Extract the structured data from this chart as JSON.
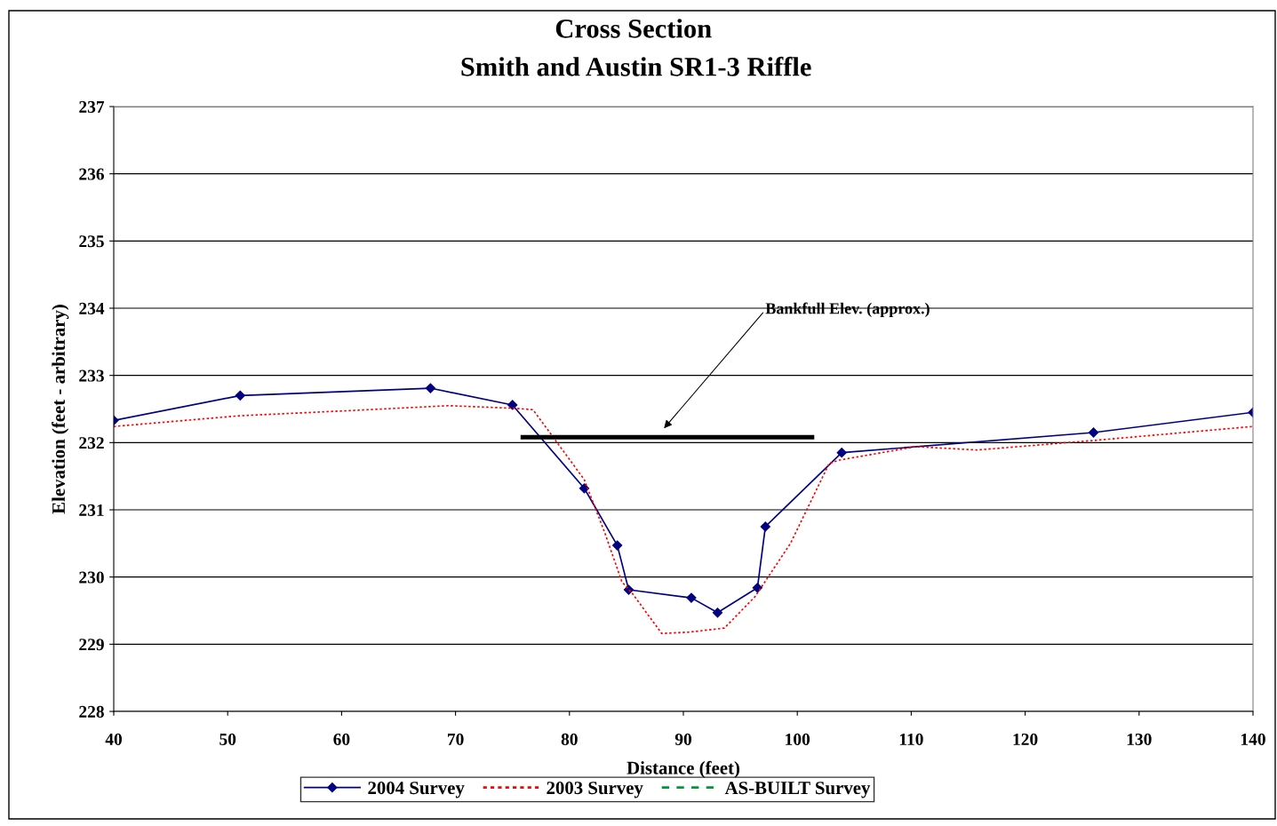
{
  "chart_data": {
    "type": "line",
    "title": "Cross Section\nSmith and Austin SR1-3 Riffle",
    "xlabel": "Distance (feet)",
    "ylabel": "Elevation (feet - arbitrary)",
    "xlim": [
      40,
      140
    ],
    "xticks": [
      40,
      50,
      60,
      70,
      80,
      90,
      100,
      110,
      120,
      130,
      140
    ],
    "ylim": [
      228,
      237
    ],
    "yticks": [
      228,
      229,
      230,
      231,
      232,
      233,
      234,
      235,
      236,
      237
    ],
    "grid": "y",
    "legend": "bottom",
    "series": [
      {
        "name": "2004 Survey",
        "color": "#000080",
        "marker": "diamond",
        "line_style": "solid",
        "x": [
          40,
          51.1,
          67.8,
          75.0,
          81.3,
          84.2,
          85.2,
          90.7,
          93.0,
          96.5,
          97.2,
          103.9,
          126.0,
          140
        ],
        "values": [
          232.33,
          232.7,
          232.81,
          232.56,
          231.32,
          230.47,
          229.81,
          229.69,
          229.47,
          229.84,
          230.75,
          231.85,
          232.15,
          232.45
        ]
      },
      {
        "name": "2003 Survey",
        "color": "#ff0000",
        "marker": "none",
        "line_style": "dotted",
        "x": [
          40,
          51.1,
          61.2,
          69.4,
          75.3,
          76.8,
          81.3,
          83.1,
          84.6,
          85.5,
          88.1,
          90.5,
          93.6,
          96.3,
          99.4,
          102.8,
          103.7,
          110.4,
          115.8,
          125.9,
          140
        ],
        "values": [
          232.24,
          232.4,
          232.48,
          232.55,
          232.51,
          232.49,
          231.45,
          230.66,
          229.93,
          229.76,
          229.16,
          229.18,
          229.24,
          229.71,
          230.5,
          231.69,
          231.74,
          231.94,
          231.89,
          232.03,
          232.24
        ]
      },
      {
        "name": "AS-BUILT Survey",
        "color": "#009933",
        "marker": "none",
        "line_style": "dashed"
      },
      {
        "color": "#000000",
        "marker": "none",
        "line_style": "solid",
        "x": [
          75.9,
          101.3
        ],
        "values": [
          232.08,
          232.08
        ]
      }
    ],
    "annotations": [
      "Bankfull Elev. (approx.)"
    ]
  }
}
